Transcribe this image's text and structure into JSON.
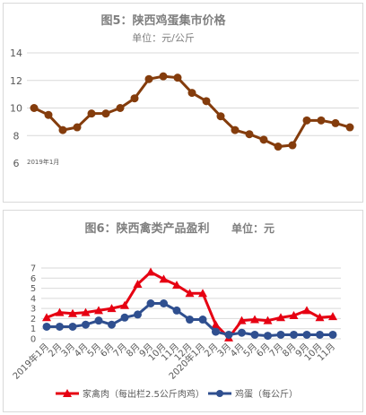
{
  "chart_data": [
    {
      "type": "line",
      "title": "图5：陕西鸡蛋集市价格",
      "subtitle": "单位：元/公斤",
      "annotation": "2019年1月",
      "y_ticks": [
        "6",
        "8",
        "10",
        "12",
        "14"
      ],
      "ylim": [
        6,
        14
      ],
      "grid": "horizontal",
      "color": "#843c0c",
      "values": [
        10.0,
        9.5,
        8.4,
        8.6,
        9.6,
        9.6,
        10.0,
        10.7,
        12.1,
        12.3,
        12.2,
        11.1,
        10.5,
        9.4,
        8.4,
        8.1,
        7.7,
        7.2,
        7.3,
        9.1,
        9.1,
        8.9,
        8.6
      ]
    },
    {
      "type": "line",
      "title": "图6：陕西禽类产品盈利",
      "subtitle": "单位：元",
      "y_ticks": [
        "0",
        "1",
        "2",
        "3",
        "4",
        "5",
        "6",
        "7"
      ],
      "ylim": [
        0,
        7
      ],
      "grid": "horizontal",
      "legend_position": "bottom",
      "categories": [
        "2019年1月",
        "2月",
        "3月",
        "4月",
        "5月",
        "6月",
        "7月",
        "8月",
        "9月",
        "10月",
        "11月",
        "12月",
        "2020年1月",
        "2月",
        "3月",
        "4月",
        "5月",
        "6月",
        "7月",
        "8月",
        "9月",
        "10月",
        "11月"
      ],
      "series": [
        {
          "name": "家禽肉（每出栏2.5公斤肉鸡）",
          "color": "#e60012",
          "marker": "triangle",
          "values": [
            2.1,
            2.6,
            2.5,
            2.6,
            2.8,
            3.0,
            3.3,
            5.4,
            6.6,
            5.9,
            5.3,
            4.5,
            4.5,
            1.4,
            0.1,
            1.8,
            1.9,
            1.8,
            2.1,
            2.3,
            2.8,
            2.1,
            2.2
          ]
        },
        {
          "name": "鸡蛋（每公斤）",
          "color": "#2f4f8f",
          "marker": "circle",
          "values": [
            1.2,
            1.2,
            1.2,
            1.4,
            1.8,
            1.4,
            2.1,
            2.4,
            3.5,
            3.5,
            2.8,
            1.9,
            1.9,
            0.7,
            0.4,
            0.6,
            0.4,
            0.3,
            0.4,
            0.4,
            0.4,
            0.4,
            0.4
          ]
        }
      ]
    }
  ]
}
